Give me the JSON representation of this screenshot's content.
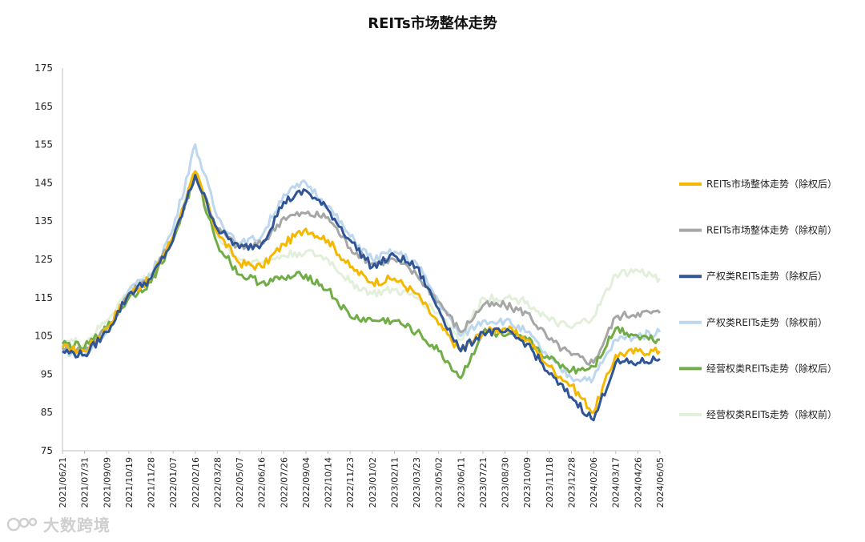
{
  "chart_data": {
    "type": "line",
    "title": "REITs市场整体走势",
    "xlabel": "",
    "ylabel": "",
    "ylim": [
      75,
      175
    ],
    "yticks": [
      75,
      85,
      95,
      105,
      115,
      125,
      135,
      145,
      155,
      165,
      175
    ],
    "grid": false,
    "legend_position": "right",
    "x": [
      "2021/06/21",
      "2021/07/31",
      "2021/09/09",
      "2021/10/19",
      "2021/11/28",
      "2022/01/07",
      "2022/02/16",
      "2022/03/28",
      "2022/05/07",
      "2022/06/16",
      "2022/07/26",
      "2022/09/04",
      "2022/10/14",
      "2022/11/23",
      "2023/01/02",
      "2023/02/11",
      "2023/03/23",
      "2023/05/02",
      "2023/06/11",
      "2023/07/21",
      "2023/08/30",
      "2023/10/09",
      "2023/11/18",
      "2023/12/28",
      "2024/02/06",
      "2024/03/17",
      "2024/04/26",
      "2024/06/05"
    ],
    "series": [
      {
        "name": "REITs市场整体走势（除权后）",
        "color": "#f5b800",
        "values": [
          102,
          101,
          107,
          116,
          120,
          131,
          148,
          132,
          124,
          123,
          129,
          133,
          130,
          123,
          119,
          120,
          116,
          108,
          101,
          106,
          107,
          104,
          97,
          92,
          85,
          100,
          101,
          101
        ]
      },
      {
        "name": "REITs市场整体走势（除权前）",
        "color": "#a6a6a6",
        "values": [
          102,
          101,
          107,
          116,
          120,
          131,
          148,
          133,
          128,
          129,
          136,
          137,
          136,
          128,
          124,
          125,
          121,
          114,
          106,
          113,
          113,
          111,
          104,
          100,
          98,
          110,
          111,
          111
        ]
      },
      {
        "name": "产权类REITs走势（除权后）",
        "color": "#2f5597",
        "values": [
          101,
          100,
          106,
          116,
          120,
          130,
          147,
          133,
          128,
          129,
          140,
          143,
          138,
          130,
          123,
          126,
          123,
          112,
          101,
          106,
          106,
          103,
          95,
          89,
          83,
          98,
          98,
          99
        ]
      },
      {
        "name": "产权类REITs走势（除权前）",
        "color": "#bdd7ee",
        "values": [
          101,
          100,
          106,
          117,
          121,
          133,
          155,
          136,
          129,
          131,
          142,
          145,
          139,
          131,
          125,
          127,
          124,
          114,
          105,
          109,
          109,
          106,
          99,
          94,
          94,
          104,
          105,
          106
        ]
      },
      {
        "name": "经营权类REITs走势（除权后）",
        "color": "#70ad47",
        "values": [
          103,
          102,
          107,
          115,
          119,
          130,
          147,
          129,
          121,
          119,
          120,
          121,
          117,
          110,
          109,
          109,
          106,
          101,
          94,
          106,
          105,
          104,
          99,
          96,
          97,
          107,
          105,
          104
        ]
      },
      {
        "name": "经营权类REITs走势（除权前）",
        "color": "#e2efda",
        "values": [
          104,
          103,
          109,
          117,
          121,
          131,
          148,
          131,
          125,
          124,
          126,
          127,
          125,
          119,
          116,
          117,
          115,
          111,
          104,
          115,
          115,
          114,
          109,
          107,
          110,
          121,
          122,
          120
        ]
      }
    ]
  },
  "watermark": "大数跨境"
}
